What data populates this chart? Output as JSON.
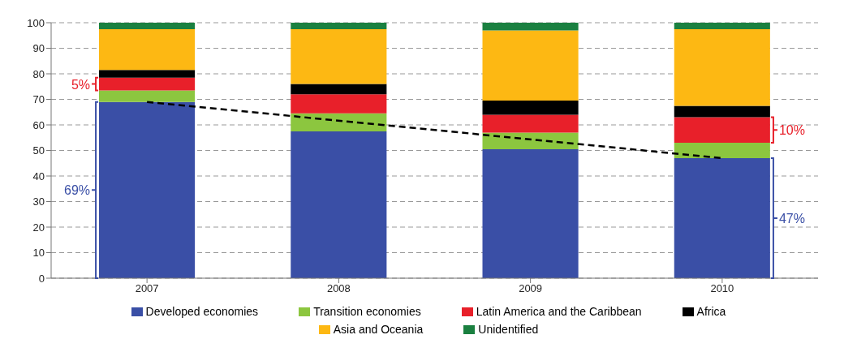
{
  "chart_data": {
    "type": "bar",
    "stacked": true,
    "categories": [
      "2007",
      "2008",
      "2009",
      "2010"
    ],
    "series": [
      {
        "name": "Developed economies",
        "color": "#3a4fa6",
        "values": [
          69,
          57.5,
          50.5,
          47
        ],
        "value_labels": [
          "69%",
          null,
          null,
          "47%"
        ]
      },
      {
        "name": "Transition economies",
        "color": "#8cc63f",
        "values": [
          4.5,
          7,
          6.5,
          6
        ]
      },
      {
        "name": "Latin America and the Caribbean",
        "color": "#e8202a",
        "values": [
          5,
          7.5,
          7,
          10
        ],
        "value_labels": [
          "5%",
          null,
          null,
          "10%"
        ]
      },
      {
        "name": "Africa",
        "color": "#000000",
        "values": [
          3,
          4,
          5.5,
          4.5
        ]
      },
      {
        "name": "Asia and Oceania",
        "color": "#fdb813",
        "values": [
          16,
          21.5,
          27.5,
          30
        ]
      },
      {
        "name": "Unidentified",
        "color": "#1a8040",
        "values": [
          2.5,
          2.5,
          3,
          2.5
        ]
      },
      {
        "type": "line",
        "values": [
          69,
          null,
          null,
          47
        ],
        "color": "#000000",
        "line_style": "dashed",
        "marker": "none"
      }
    ],
    "ylim": [
      0,
      100
    ],
    "yticks": [
      0,
      10,
      20,
      30,
      40,
      50,
      60,
      70,
      80,
      90,
      100
    ],
    "grid": "y",
    "legend": "bottom"
  }
}
